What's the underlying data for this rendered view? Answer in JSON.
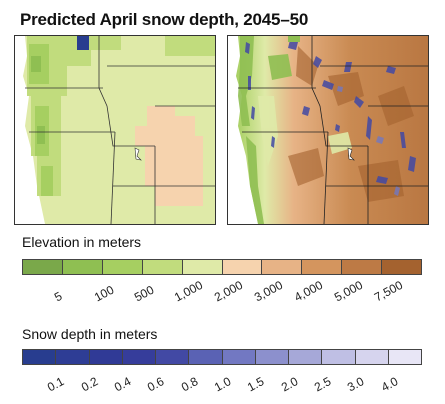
{
  "title": "Predicted April snow depth, 2045–50",
  "elevation_legend": {
    "title": "Elevation in meters",
    "colors": [
      "#7aa84a",
      "#8fbf52",
      "#a6cf61",
      "#c1dc7d",
      "#dfeaa8",
      "#f6d3ae",
      "#e7b386",
      "#d4955e",
      "#bd7a45",
      "#a4622f"
    ],
    "ticks": [
      "5",
      "100",
      "500",
      "1,000",
      "2,000",
      "3,000",
      "4,000",
      "5,000",
      "7,500"
    ]
  },
  "snow_legend": {
    "title": "Snow depth in meters",
    "colors": [
      "#283d8f",
      "#2e3d95",
      "#303a96",
      "#363d9b",
      "#4249a4",
      "#5a62b4",
      "#7278c2",
      "#8c90cd",
      "#a6a8d8",
      "#bfbfe4",
      "#d6d4ee",
      "#e8e6f6"
    ],
    "ticks": [
      "0.1",
      "0.2",
      "0.4",
      "0.6",
      "0.8",
      "1.0",
      "1.5",
      "2.0",
      "2.5",
      "3.0",
      "4.0"
    ]
  },
  "maps": {
    "left": {
      "name": "coarse-resolution-snow-map"
    },
    "right": {
      "name": "high-resolution-snow-map"
    }
  }
}
